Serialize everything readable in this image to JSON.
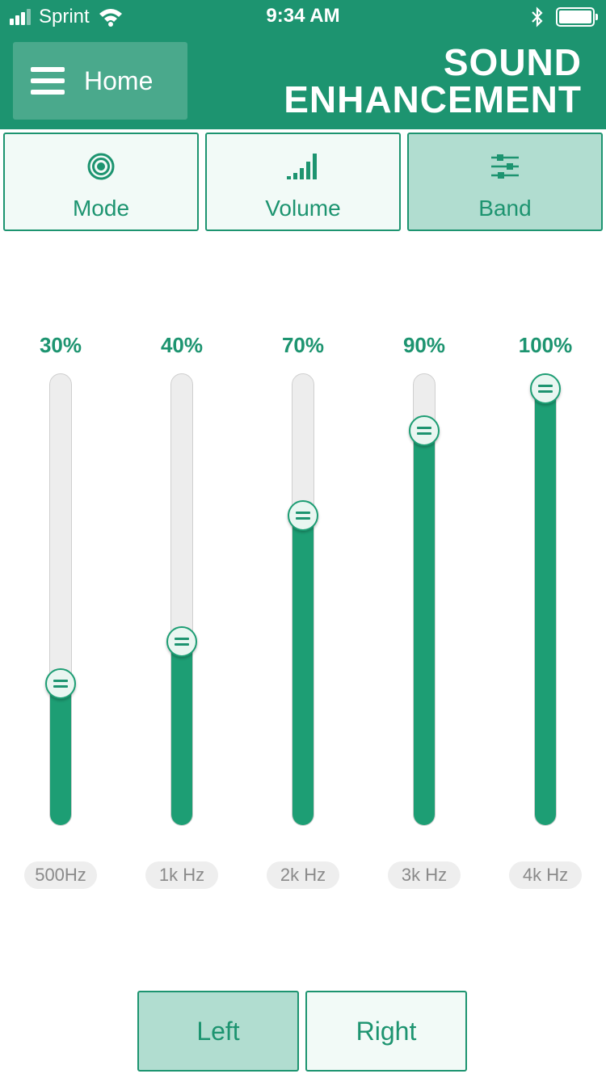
{
  "status_bar": {
    "carrier": "Sprint",
    "time": "9:34 AM",
    "signal_bars_active": 3,
    "signal_bars_total": 4
  },
  "header": {
    "home_label": "Home",
    "title_line1": "SOUND",
    "title_line2": "ENHANCEMENT"
  },
  "tabs": [
    {
      "label": "Mode",
      "icon": "target-icon",
      "active": false
    },
    {
      "label": "Volume",
      "icon": "volume-bars-icon",
      "active": false
    },
    {
      "label": "Band",
      "icon": "sliders-icon",
      "active": true
    }
  ],
  "bands": [
    {
      "label": "500Hz",
      "value_text": "30%",
      "value": 0.3
    },
    {
      "label": "1k Hz",
      "value_text": "40%",
      "value": 0.4
    },
    {
      "label": "2k Hz",
      "value_text": "70%",
      "value": 0.7
    },
    {
      "label": "3k Hz",
      "value_text": "90%",
      "value": 0.9
    },
    {
      "label": "4k Hz",
      "value_text": "100%",
      "value": 1.0
    }
  ],
  "sides": {
    "left_label": "Left",
    "right_label": "Right",
    "active": "left"
  },
  "colors": {
    "primary": "#1d9470",
    "active_bg": "#b1ddd0",
    "track": "#ededed"
  }
}
